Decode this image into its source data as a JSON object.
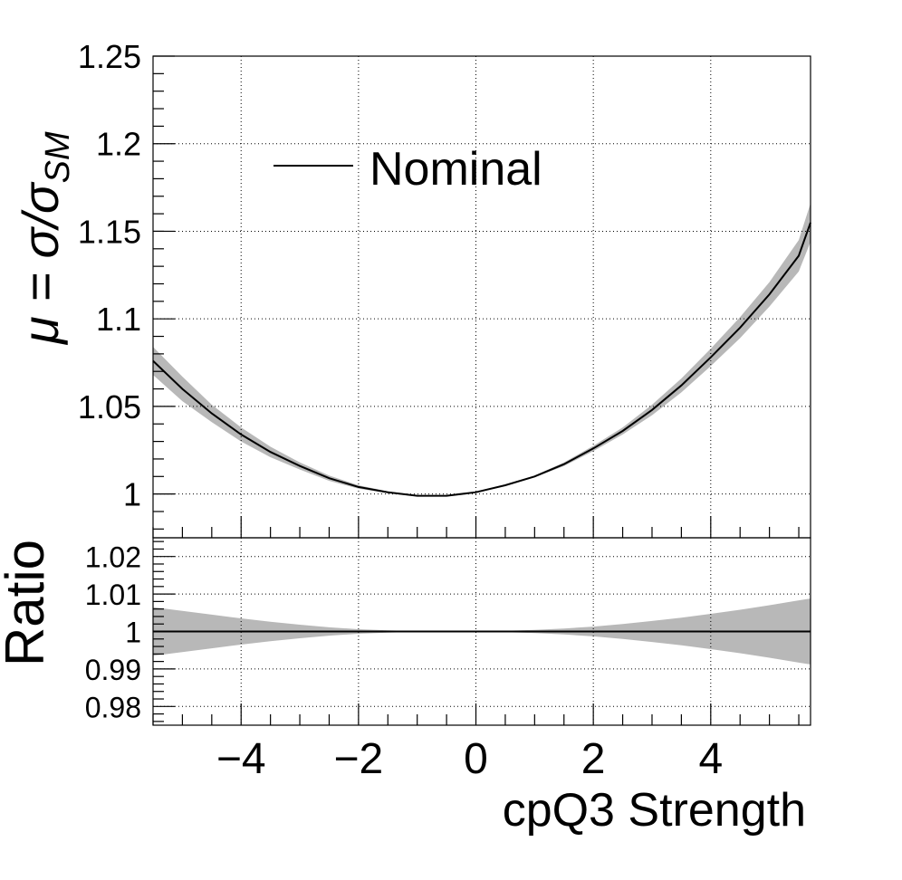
{
  "chart_data": [
    {
      "type": "line",
      "panel": "main",
      "ylabel_main": "μ = σ/σ",
      "ylabel_sub": "SM",
      "xlim": [
        -5.5,
        5.7
      ],
      "ylim": [
        0.975,
        1.25
      ],
      "yticks": [
        1,
        1.05,
        1.1,
        1.15,
        1.2,
        1.25
      ],
      "ytick_labels": [
        "1",
        "1.05",
        "1.1",
        "1.15",
        "1.2",
        "1.25"
      ],
      "grid": true,
      "legend": {
        "placement": "top-left",
        "entries": [
          "Nominal"
        ]
      },
      "series": [
        {
          "name": "Nominal",
          "x": [
            -5.5,
            -5.0,
            -4.5,
            -4.0,
            -3.5,
            -3.0,
            -2.5,
            -2.0,
            -1.5,
            -1.0,
            -0.5,
            0.0,
            0.5,
            1.0,
            1.5,
            2.0,
            2.5,
            3.0,
            3.5,
            4.0,
            4.5,
            5.0,
            5.5,
            5.7
          ],
          "y": [
            1.076,
            1.06,
            1.046,
            1.034,
            1.024,
            1.016,
            1.009,
            1.004,
            1.001,
            0.999,
            0.999,
            1.001,
            1.005,
            1.01,
            1.017,
            1.026,
            1.036,
            1.048,
            1.062,
            1.078,
            1.095,
            1.114,
            1.136,
            1.155
          ],
          "band_halfwidth": [
            0.008,
            0.007,
            0.005,
            0.004,
            0.003,
            0.002,
            0.0015,
            0.001,
            0.0005,
            0.0003,
            0.0002,
            0.0002,
            0.0003,
            0.0005,
            0.001,
            0.0015,
            0.002,
            0.003,
            0.004,
            0.005,
            0.006,
            0.007,
            0.009,
            0.011
          ]
        }
      ]
    },
    {
      "type": "line",
      "panel": "ratio",
      "xlabel": "cpQ3 Strength",
      "ylabel": "Ratio",
      "xlim": [
        -5.5,
        5.7
      ],
      "ylim": [
        0.975,
        1.025
      ],
      "xticks": [
        -4,
        -2,
        0,
        2,
        4
      ],
      "xtick_labels": [
        "−4",
        "−2",
        "0",
        "2",
        "4"
      ],
      "yticks": [
        0.98,
        0.99,
        1,
        1.01,
        1.02
      ],
      "ytick_labels": [
        "0.98",
        "0.99",
        "1",
        "1.01",
        "1.02"
      ],
      "grid": true,
      "series": [
        {
          "name": "Nominal",
          "x": [
            -5.5,
            -5.0,
            -4.5,
            -4.0,
            -3.5,
            -3.0,
            -2.5,
            -2.0,
            -1.5,
            -1.0,
            -0.5,
            0.0,
            0.5,
            1.0,
            1.5,
            2.0,
            2.5,
            3.0,
            3.5,
            4.0,
            4.5,
            5.0,
            5.5,
            5.7
          ],
          "y": [
            1,
            1,
            1,
            1,
            1,
            1,
            1,
            1,
            1,
            1,
            1,
            1,
            1,
            1,
            1,
            1,
            1,
            1,
            1,
            1,
            1,
            1,
            1,
            1
          ],
          "band_halfwidth": [
            0.0065,
            0.0055,
            0.0045,
            0.0035,
            0.0026,
            0.0018,
            0.0011,
            0.0006,
            0.0003,
            0.0001,
            0.0001,
            0.0001,
            0.0002,
            0.0004,
            0.0008,
            0.0013,
            0.002,
            0.0028,
            0.0037,
            0.0047,
            0.0058,
            0.007,
            0.0083,
            0.0088
          ]
        }
      ]
    }
  ]
}
